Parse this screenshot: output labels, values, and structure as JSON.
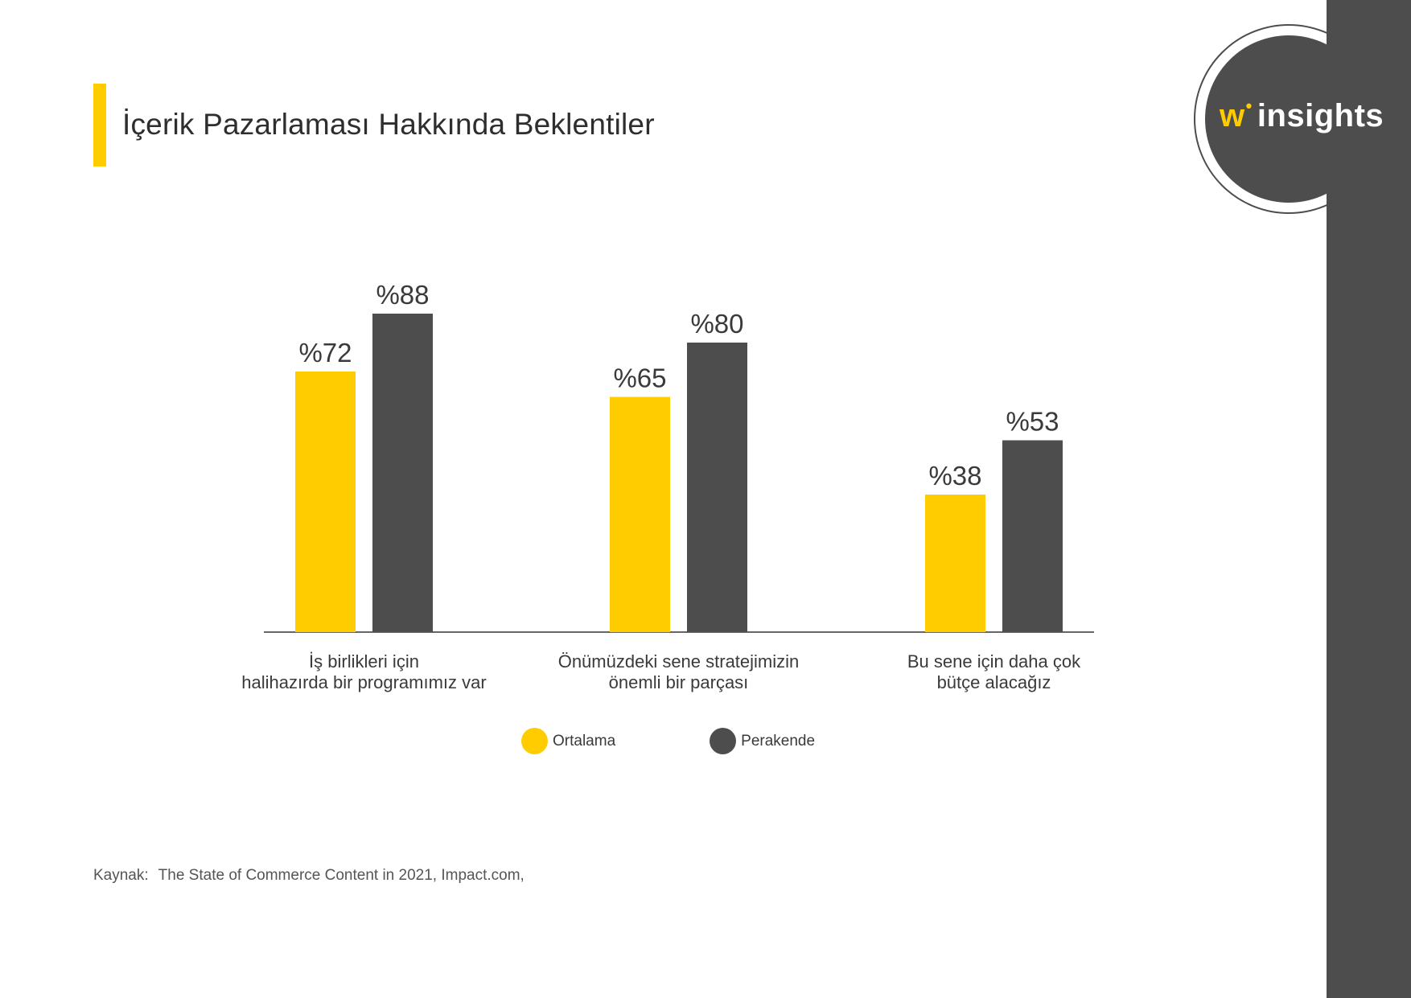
{
  "page": {
    "title": "İçerik Pazarlaması Hakkında Beklentiler",
    "source_label": "Kaynak:",
    "source_text": "The State of Commerce Content in 2021, Impact.com,"
  },
  "logo": {
    "w": "w",
    "dot": "•",
    "insights": "insights"
  },
  "colors": {
    "accent": "#ffcc00",
    "dark": "#4d4d4d",
    "axis": "#666666"
  },
  "legend": [
    {
      "label": "Ortalama",
      "color": "#ffcc00"
    },
    {
      "label": "Perakende",
      "color": "#4d4d4d"
    }
  ],
  "chart_data": {
    "type": "bar",
    "title": "İçerik Pazarlaması Hakkında Beklentiler",
    "categories": [
      [
        "İş birlikleri için",
        "halihazırda bir programımız var"
      ],
      [
        "Önümüzdeki sene stratejimizin",
        "önemli bir parçası"
      ],
      [
        "Bu sene için daha çok",
        "bütçe alacağız"
      ]
    ],
    "series": [
      {
        "name": "Ortalama",
        "color": "#ffcc00",
        "values": [
          72,
          65,
          38
        ],
        "labels": [
          "%72",
          "%65",
          "%38"
        ]
      },
      {
        "name": "Perakende",
        "color": "#4d4d4d",
        "values": [
          88,
          80,
          53
        ],
        "labels": [
          "%88",
          "%80",
          "%53"
        ]
      }
    ],
    "xlabel": "",
    "ylabel": "",
    "ylim": [
      0,
      100
    ],
    "grid": false,
    "legend_position": "bottom-center"
  }
}
